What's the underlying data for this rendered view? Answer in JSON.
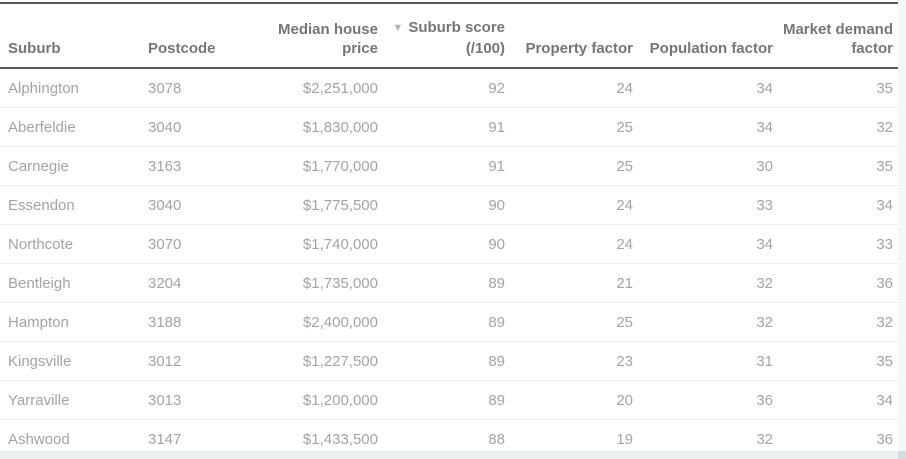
{
  "colors": {
    "strong_border": "#57585a",
    "header_text": "#767677",
    "body_text": "#a3a4a6",
    "row_separator": "#ededee",
    "scrollbar_track": "#edeff1"
  },
  "table": {
    "sort_icon": "▼",
    "sorted_column": "Suburb score (/100)",
    "sort_direction": "descending",
    "columns": [
      {
        "id": "suburb",
        "label": "Suburb"
      },
      {
        "id": "postcode",
        "label": "Postcode"
      },
      {
        "id": "median_house_price",
        "label": "Median house price"
      },
      {
        "id": "suburb_score",
        "label": "Suburb score (/100)"
      },
      {
        "id": "property_factor",
        "label": "Property factor"
      },
      {
        "id": "population_factor",
        "label": "Population factor"
      },
      {
        "id": "market_demand_factor",
        "label": "Market demand factor"
      }
    ],
    "rows": [
      {
        "suburb": "Alphington",
        "postcode": "3078",
        "median_house_price": "$2,251,000",
        "suburb_score": "92",
        "property_factor": "24",
        "population_factor": "34",
        "market_demand_factor": "35"
      },
      {
        "suburb": "Aberfeldie",
        "postcode": "3040",
        "median_house_price": "$1,830,000",
        "suburb_score": "91",
        "property_factor": "25",
        "population_factor": "34",
        "market_demand_factor": "32"
      },
      {
        "suburb": "Carnegie",
        "postcode": "3163",
        "median_house_price": "$1,770,000",
        "suburb_score": "91",
        "property_factor": "25",
        "population_factor": "30",
        "market_demand_factor": "35"
      },
      {
        "suburb": "Essendon",
        "postcode": "3040",
        "median_house_price": "$1,775,500",
        "suburb_score": "90",
        "property_factor": "24",
        "population_factor": "33",
        "market_demand_factor": "34"
      },
      {
        "suburb": "Northcote",
        "postcode": "3070",
        "median_house_price": "$1,740,000",
        "suburb_score": "90",
        "property_factor": "24",
        "population_factor": "34",
        "market_demand_factor": "33"
      },
      {
        "suburb": "Bentleigh",
        "postcode": "3204",
        "median_house_price": "$1,735,000",
        "suburb_score": "89",
        "property_factor": "21",
        "population_factor": "32",
        "market_demand_factor": "36"
      },
      {
        "suburb": "Hampton",
        "postcode": "3188",
        "median_house_price": "$2,400,000",
        "suburb_score": "89",
        "property_factor": "25",
        "population_factor": "32",
        "market_demand_factor": "32"
      },
      {
        "suburb": "Kingsville",
        "postcode": "3012",
        "median_house_price": "$1,227,500",
        "suburb_score": "89",
        "property_factor": "23",
        "population_factor": "31",
        "market_demand_factor": "35"
      },
      {
        "suburb": "Yarraville",
        "postcode": "3013",
        "median_house_price": "$1,200,000",
        "suburb_score": "89",
        "property_factor": "20",
        "population_factor": "36",
        "market_demand_factor": "34"
      },
      {
        "suburb": "Ashwood",
        "postcode": "3147",
        "median_house_price": "$1,433,500",
        "suburb_score": "88",
        "property_factor": "19",
        "population_factor": "32",
        "market_demand_factor": "36"
      }
    ]
  }
}
